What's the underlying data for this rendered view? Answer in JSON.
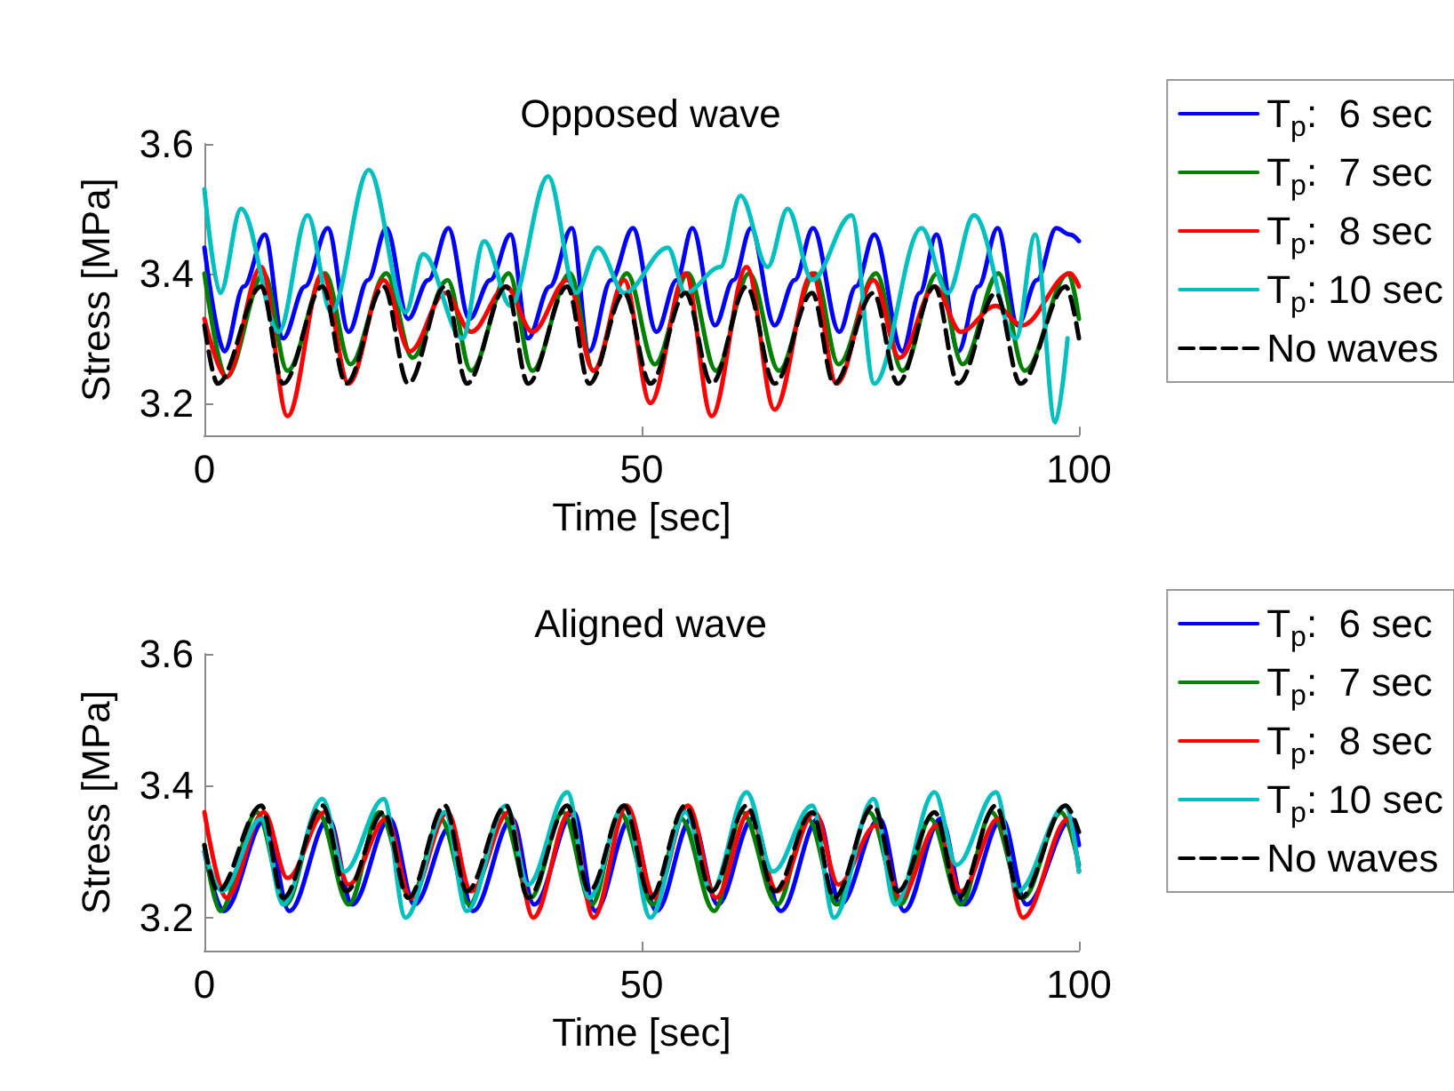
{
  "chart_data": [
    {
      "type": "line",
      "title": "Opposed wave",
      "xlabel": "Time [sec]",
      "ylabel": "Stress [MPa]",
      "xlim": [
        0,
        100
      ],
      "xticks": [
        0,
        50,
        100
      ],
      "ylim": [
        3.15,
        3.6
      ],
      "yticks": [
        3.2,
        3.4,
        3.6
      ],
      "legend": "right",
      "marker": "none",
      "line_style": "solid",
      "series": [
        {
          "name": "T$_{p}$:  6 sec",
          "color": "#0000ff",
          "x": [
            0,
            2.3,
            4.5,
            6.9,
            9,
            11.5,
            14.1,
            16.5,
            18.7,
            20.8,
            23.3,
            25.6,
            27.9,
            30.3,
            32.7,
            35,
            37,
            39.5,
            42,
            44,
            46.5,
            49,
            51.7,
            54,
            55.8,
            58.4,
            60.5,
            62.5,
            65.2,
            67.5,
            69.6,
            72.6,
            74.5,
            76.6,
            79.8,
            81.8,
            83.7,
            86.2,
            88.5,
            90.7,
            93,
            95.2,
            97.4,
            99,
            100
          ],
          "values": [
            3.44,
            3.28,
            3.38,
            3.46,
            3.3,
            3.38,
            3.47,
            3.31,
            3.39,
            3.47,
            3.33,
            3.39,
            3.47,
            3.33,
            3.39,
            3.46,
            3.3,
            3.38,
            3.47,
            3.28,
            3.39,
            3.47,
            3.31,
            3.39,
            3.47,
            3.32,
            3.39,
            3.47,
            3.32,
            3.39,
            3.47,
            3.31,
            3.38,
            3.46,
            3.28,
            3.37,
            3.46,
            3.28,
            3.38,
            3.47,
            3.32,
            3.39,
            3.47,
            3.46,
            3.45
          ]
        },
        {
          "name": "T$_{p}$:  7 sec",
          "color": "#008000",
          "x": [
            0,
            2.5,
            6.8,
            9.5,
            13.8,
            16.7,
            20.8,
            23.8,
            27.8,
            30.5,
            34.8,
            37.5,
            41.8,
            44.5,
            48.3,
            51.5,
            55.3,
            58.5,
            62.3,
            65.7,
            69.8,
            72.5,
            76.8,
            79.8,
            83.8,
            86.7,
            90.8,
            93.8,
            98.8,
            100
          ],
          "values": [
            3.4,
            3.24,
            3.4,
            3.25,
            3.4,
            3.26,
            3.4,
            3.27,
            3.39,
            3.25,
            3.4,
            3.25,
            3.4,
            3.25,
            3.4,
            3.26,
            3.4,
            3.25,
            3.4,
            3.25,
            3.4,
            3.26,
            3.4,
            3.25,
            3.4,
            3.26,
            3.4,
            3.25,
            3.4,
            3.33
          ]
        },
        {
          "name": "T$_{p}$:  8 sec",
          "color": "#ff0000",
          "x": [
            0,
            2.5,
            6.5,
            9.5,
            13.5,
            16.5,
            20.5,
            23.5,
            27.5,
            30.5,
            34.5,
            37.5,
            41.5,
            44.5,
            48,
            51,
            55,
            58,
            62,
            65.2,
            69.5,
            72.3,
            76.5,
            79.5,
            83.5,
            86.5,
            90.5,
            93.5,
            99,
            100
          ],
          "values": [
            3.33,
            3.24,
            3.41,
            3.18,
            3.4,
            3.23,
            3.39,
            3.28,
            3.37,
            3.31,
            3.38,
            3.31,
            3.39,
            3.25,
            3.39,
            3.2,
            3.4,
            3.18,
            3.41,
            3.19,
            3.4,
            3.23,
            3.39,
            3.27,
            3.38,
            3.31,
            3.35,
            3.32,
            3.4,
            3.38
          ]
        },
        {
          "name": "T$_{p}$: 10 sec",
          "color": "#00bfbf",
          "x": [
            0,
            1.8,
            4.2,
            8.5,
            11.8,
            14.5,
            18.8,
            23,
            25,
            29.5,
            32,
            35,
            39.3,
            42.5,
            45,
            48,
            53,
            55,
            59,
            61.3,
            64.4,
            66.7,
            69.5,
            74,
            76.6,
            82,
            85,
            88,
            92.8,
            95,
            97.3,
            98.7
          ],
          "values": [
            3.53,
            3.37,
            3.5,
            3.31,
            3.49,
            3.34,
            3.56,
            3.34,
            3.43,
            3.3,
            3.45,
            3.35,
            3.55,
            3.37,
            3.44,
            3.37,
            3.44,
            3.37,
            3.41,
            3.52,
            3.41,
            3.5,
            3.39,
            3.49,
            3.23,
            3.47,
            3.37,
            3.49,
            3.3,
            3.46,
            3.17,
            3.3
          ]
        },
        {
          "name": "No waves",
          "color": "#000000",
          "line_style": "dashed",
          "x": [
            0,
            1.5,
            6.5,
            9,
            13.5,
            16.2,
            20.5,
            23.3,
            27.5,
            30,
            34.5,
            37,
            41.5,
            44,
            48,
            51,
            55,
            58,
            62,
            65.2,
            69.5,
            72,
            76.5,
            79.3,
            83.5,
            86.2,
            90.5,
            93.3,
            98.5,
            100
          ],
          "values": [
            3.32,
            3.23,
            3.38,
            3.23,
            3.38,
            3.23,
            3.38,
            3.23,
            3.38,
            3.23,
            3.38,
            3.23,
            3.38,
            3.23,
            3.37,
            3.23,
            3.37,
            3.23,
            3.38,
            3.23,
            3.37,
            3.23,
            3.37,
            3.23,
            3.38,
            3.23,
            3.37,
            3.23,
            3.38,
            3.3
          ]
        }
      ]
    },
    {
      "type": "line",
      "title": "Aligned wave",
      "xlabel": "Time [sec]",
      "ylabel": "Stress [MPa]",
      "xlim": [
        0,
        100
      ],
      "xticks": [
        0,
        50,
        100
      ],
      "ylim": [
        3.15,
        3.6
      ],
      "yticks": [
        3.2,
        3.4,
        3.6
      ],
      "legend": "right",
      "marker": "none",
      "line_style": "solid",
      "series": [
        {
          "name": "T$_{p}$:  6 sec",
          "color": "#0000ff",
          "x": [
            0,
            2.2,
            7,
            9.7,
            14.2,
            16.9,
            21.2,
            24,
            28.2,
            30.7,
            35.2,
            37.7,
            42.2,
            44.7,
            48.7,
            51.7,
            55.7,
            58.7,
            62.7,
            65.9,
            70.2,
            72.7,
            77.2,
            80,
            84.2,
            86.9,
            91.2,
            94,
            99.2,
            100
          ],
          "values": [
            3.3,
            3.21,
            3.35,
            3.21,
            3.35,
            3.22,
            3.35,
            3.22,
            3.34,
            3.21,
            3.35,
            3.22,
            3.36,
            3.21,
            3.35,
            3.21,
            3.35,
            3.22,
            3.35,
            3.21,
            3.35,
            3.22,
            3.35,
            3.21,
            3.35,
            3.22,
            3.35,
            3.22,
            3.35,
            3.31
          ]
        },
        {
          "name": "T$_{p}$:  7 sec",
          "color": "#008000",
          "x": [
            0,
            1.8,
            6,
            9.3,
            13,
            16.5,
            20,
            23.6,
            27,
            30.3,
            34,
            37.3,
            41,
            44.3,
            47.5,
            51.3,
            54.5,
            58.3,
            61.5,
            65.5,
            69,
            72.3,
            76,
            79.6,
            83,
            86.5,
            90,
            93.6,
            98,
            100
          ],
          "values": [
            3.31,
            3.21,
            3.36,
            3.22,
            3.36,
            3.22,
            3.36,
            3.23,
            3.35,
            3.22,
            3.36,
            3.23,
            3.36,
            3.22,
            3.36,
            3.22,
            3.35,
            3.21,
            3.36,
            3.22,
            3.35,
            3.22,
            3.36,
            3.22,
            3.35,
            3.22,
            3.36,
            3.23,
            3.36,
            3.28
          ]
        },
        {
          "name": "T$_{p}$:  8 sec",
          "color": "#ff0000",
          "x": [
            0,
            2.5,
            6.8,
            9.5,
            13.8,
            16.5,
            20.8,
            23.6,
            27.8,
            30.5,
            34.8,
            37.6,
            41.8,
            44.5,
            48.3,
            51.5,
            55.3,
            58.5,
            62.3,
            65.5,
            69.8,
            72.5,
            76.8,
            79.6,
            83.8,
            86.5,
            90.8,
            93.6,
            98.8,
            100
          ],
          "values": [
            3.36,
            3.23,
            3.36,
            3.26,
            3.36,
            3.25,
            3.35,
            3.23,
            3.36,
            3.24,
            3.36,
            3.2,
            3.36,
            3.2,
            3.37,
            3.23,
            3.37,
            3.23,
            3.36,
            3.24,
            3.36,
            3.25,
            3.34,
            3.23,
            3.34,
            3.24,
            3.35,
            3.2,
            3.35,
            3.27
          ]
        },
        {
          "name": "T$_{p}$: 10 sec",
          "color": "#00bfbf",
          "x": [
            0,
            2,
            6.5,
            9,
            13.5,
            16,
            20.5,
            23,
            27.5,
            30,
            34.5,
            37,
            41.5,
            44,
            48,
            51,
            55,
            58,
            62,
            65,
            69.5,
            72,
            76.5,
            79,
            83.5,
            86,
            90.5,
            93,
            98.5,
            100
          ],
          "values": [
            3.3,
            3.24,
            3.35,
            3.22,
            3.38,
            3.27,
            3.38,
            3.2,
            3.36,
            3.21,
            3.37,
            3.25,
            3.39,
            3.23,
            3.37,
            3.2,
            3.36,
            3.24,
            3.39,
            3.27,
            3.37,
            3.2,
            3.38,
            3.22,
            3.39,
            3.28,
            3.39,
            3.24,
            3.37,
            3.27
          ]
        },
        {
          "name": "No waves",
          "color": "#000000",
          "line_style": "dashed",
          "x": [
            0,
            1.5,
            6.5,
            9,
            13.5,
            16.2,
            20.5,
            23.3,
            27.5,
            30,
            34.5,
            37,
            41.5,
            44,
            48,
            51,
            55,
            58,
            62,
            65.2,
            69.5,
            72,
            76.5,
            79.3,
            83.5,
            86.2,
            90.5,
            93.3,
            98.5,
            100
          ],
          "values": [
            3.31,
            3.24,
            3.37,
            3.23,
            3.37,
            3.24,
            3.36,
            3.23,
            3.37,
            3.24,
            3.37,
            3.23,
            3.37,
            3.24,
            3.37,
            3.23,
            3.37,
            3.24,
            3.37,
            3.24,
            3.36,
            3.23,
            3.37,
            3.24,
            3.36,
            3.23,
            3.37,
            3.23,
            3.37,
            3.33
          ]
        }
      ]
    }
  ]
}
